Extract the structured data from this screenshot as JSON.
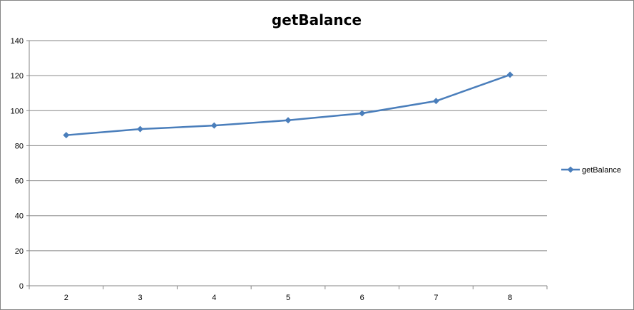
{
  "chart_data": {
    "type": "line",
    "title": "getBalance",
    "xlabel": "",
    "ylabel": "",
    "categories": [
      "2",
      "3",
      "4",
      "5",
      "6",
      "7",
      "8"
    ],
    "series": [
      {
        "name": "getBalance",
        "values": [
          86,
          89.5,
          91.5,
          94.5,
          98.5,
          105.5,
          120.5
        ],
        "color": "#4a7ebb",
        "marker": "diamond"
      }
    ],
    "ylim": [
      0,
      140
    ],
    "yticks": [
      "0",
      "20",
      "40",
      "60",
      "80",
      "100",
      "120",
      "140"
    ],
    "grid": true,
    "legend_position": "right"
  }
}
